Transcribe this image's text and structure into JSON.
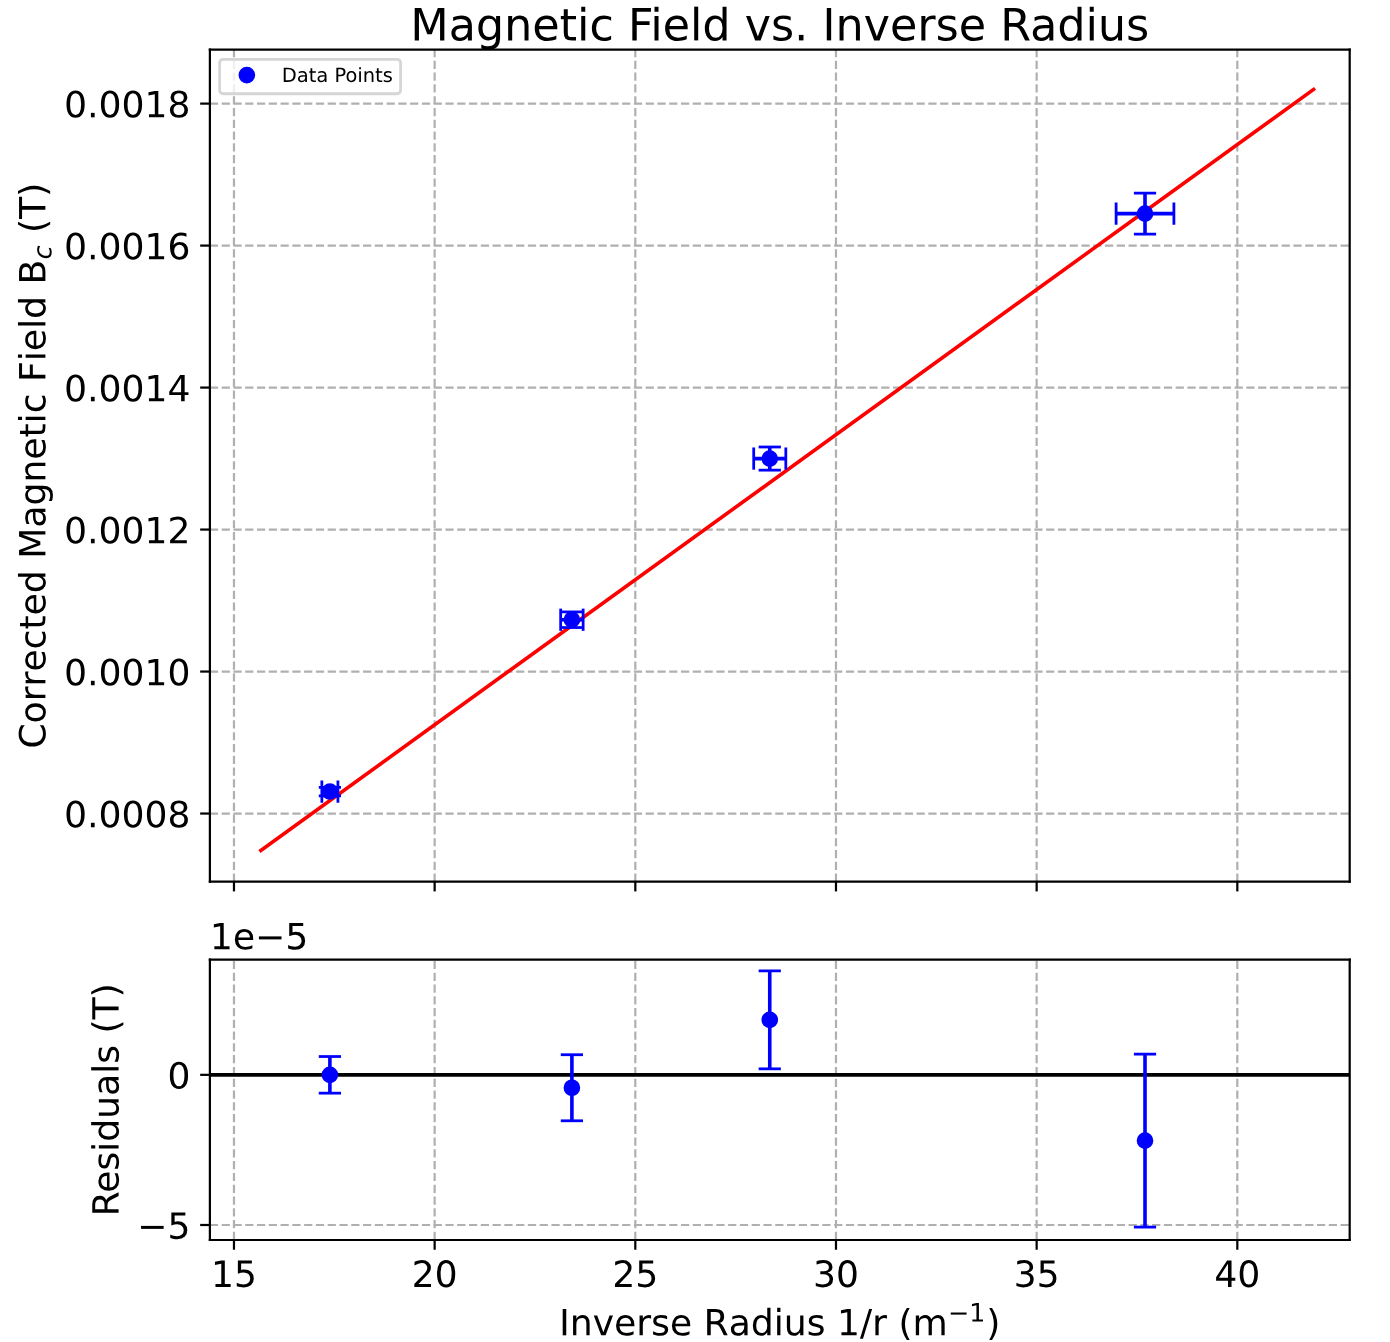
{
  "chart_data": [
    {
      "type": "scatter",
      "title": "Magnetic Field vs. Inverse Radius",
      "ylabel": "Corrected Magnetic Field B$_{c}$ (T)",
      "xlim": [
        14.4,
        42.8
      ],
      "xticks": [
        15,
        20,
        25,
        30,
        35,
        40
      ],
      "ylim": [
        0.000704,
        0.001876
      ],
      "yticks": [
        0.0008,
        {
          "value": 0.001,
          "label": "0.0010"
        },
        0.0012,
        0.0014,
        0.0016,
        0.0018
      ],
      "tick_labels": "y",
      "grid": true,
      "legend": "top left",
      "series": [
        {
          "name": "Data Points",
          "marker": "circle",
          "color": "#0000ff",
          "x": [
            17.39,
            23.42,
            28.35,
            37.7
          ],
          "values": [
            0.000831,
            0.001073,
            0.0013,
            0.001645
          ],
          "errors": [
            6e-06,
            1.1e-05,
            1.63e-05,
            2.88e-05
          ],
          "xerrors": [
            0.2,
            0.28,
            0.4,
            0.72
          ]
        },
        {
          "type": "line",
          "color": "#ff0000",
          "x": [
            15.67,
            41.9
          ],
          "values": [
            0.000748,
            0.00182
          ]
        }
      ]
    },
    {
      "type": "scatter",
      "xlabel": "Inverse Radius 1/r (m$^{−1}$)",
      "ylabel": "Residuals (T)",
      "xlim": [
        14.4,
        42.8
      ],
      "xticks": [
        15,
        20,
        25,
        30,
        35,
        40
      ],
      "ylim": [
        -5.5,
        3.84
      ],
      "yticks": [
        {
          "value": -5,
          "label": "−5"
        },
        0
      ],
      "grid": true,
      "annotations": [
        "1e−5"
      ],
      "ref_lines": [
        {
          "axis": "y",
          "value": 0,
          "color": "#000000",
          "line_style": "solid"
        }
      ],
      "series": [
        {
          "marker": "circle",
          "color": "#0000ff",
          "x": [
            17.39,
            23.42,
            28.35,
            37.7
          ],
          "values": [
            0.0,
            -0.43,
            1.83,
            -2.19
          ],
          "errors": [
            0.61,
            1.1,
            1.63,
            2.88
          ]
        }
      ]
    }
  ]
}
